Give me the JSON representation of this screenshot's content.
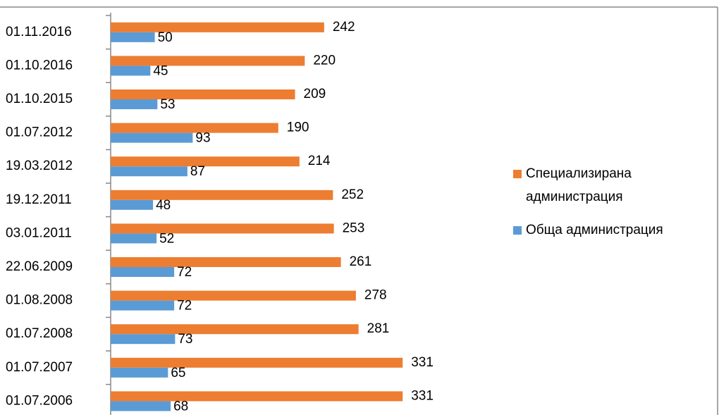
{
  "chart_data": {
    "type": "hbar",
    "categories": [
      "01.11.2016",
      "01.10.2016",
      "01.10.2015",
      "01.07.2012",
      "19.03.2012",
      "19.12.2011",
      "03.01.2011",
      "22.06.2009",
      "01.08.2008",
      "01.07.2008",
      "01.07.2007",
      "01.07.2006"
    ],
    "series": [
      {
        "name": "Специализирана администрация",
        "color": "#ED7D31",
        "values": [
          242,
          220,
          209,
          190,
          214,
          252,
          253,
          261,
          278,
          281,
          331,
          331
        ]
      },
      {
        "name": "Обща администрация",
        "color": "#5B9BD5",
        "values": [
          50,
          45,
          53,
          93,
          87,
          48,
          52,
          72,
          72,
          73,
          65,
          68
        ]
      }
    ],
    "xlim": [
      0,
      350
    ],
    "legend": "right"
  }
}
